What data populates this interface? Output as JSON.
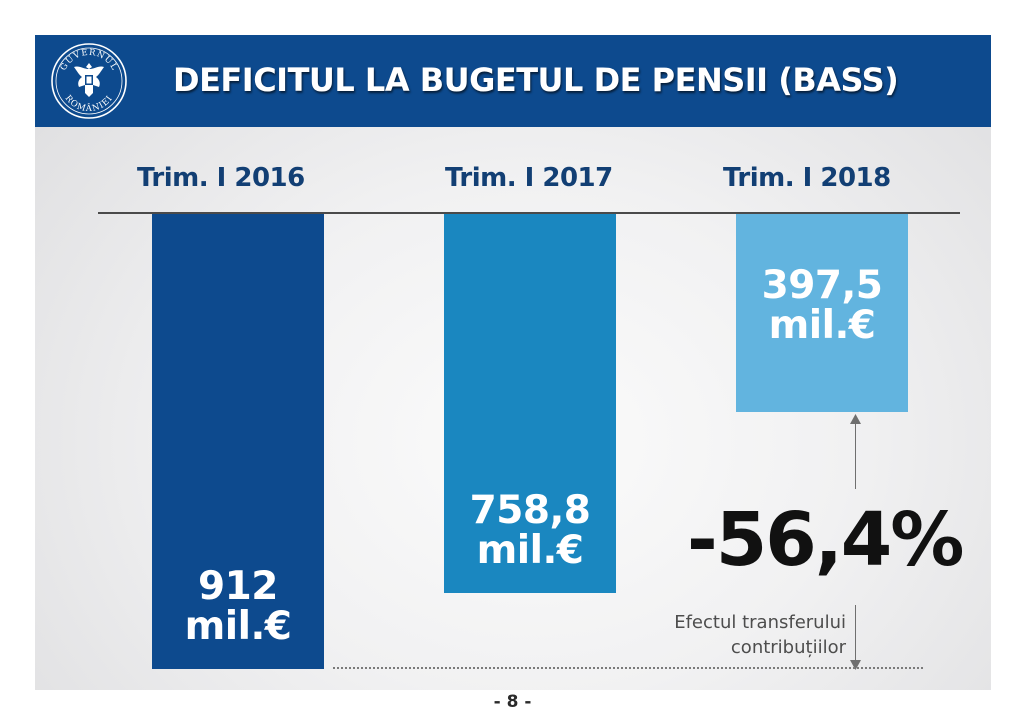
{
  "header": {
    "title": "DEFICITUL LA BUGETUL DE PENSII (BASS)",
    "emblem_text_top": "GUVERNUL",
    "emblem_text_bottom": "ROMÂNIEI"
  },
  "chart_data": {
    "type": "bar",
    "title": "DEFICITUL LA BUGETUL DE PENSII (BASS)",
    "categories": [
      "Trim. I 2016",
      "Trim. I 2017",
      "Trim. I 2018"
    ],
    "values": [
      912,
      758.8,
      397.5
    ],
    "unit": "mil.€",
    "value_labels": [
      "912",
      "758,8",
      "397,5"
    ],
    "bar_colors": [
      "#0d4a8e",
      "#1a87c0",
      "#62b4df"
    ],
    "orientation": "hanging-from-top",
    "annotation_change": "-56,4%",
    "annotation_note_line1": "Efectul transferului",
    "annotation_note_line2": "contribuțiilor"
  },
  "colors": {
    "header_bg": "#0d4a8e",
    "category_text": "#123f74"
  },
  "footer": {
    "page_number": "- 8 -"
  }
}
